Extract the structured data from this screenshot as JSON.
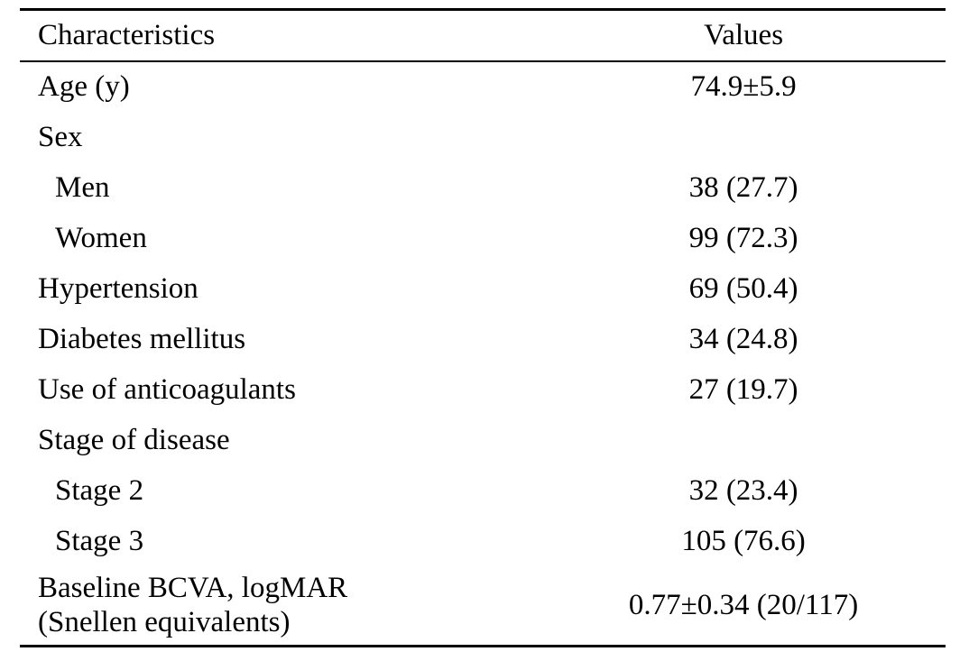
{
  "table": {
    "headers": {
      "characteristics": "Characteristics",
      "values": "Values"
    },
    "rows": [
      {
        "label": "Age (y)",
        "value": "74.9±5.9"
      },
      {
        "label": "Sex",
        "value": ""
      },
      {
        "label": "Men",
        "value": "38 (27.7)"
      },
      {
        "label": "Women",
        "value": "99 (72.3)"
      },
      {
        "label": "Hypertension",
        "value": "69 (50.4)"
      },
      {
        "label": "Diabetes mellitus",
        "value": "34 (24.8)"
      },
      {
        "label": "Use of anticoagulants",
        "value": "27 (19.7)"
      },
      {
        "label": "Stage of disease",
        "value": ""
      },
      {
        "label": "Stage 2",
        "value": "32 (23.4)"
      },
      {
        "label": "Stage 3",
        "value": "105 (76.6)"
      },
      {
        "label_line1": "Baseline BCVA, logMAR",
        "label_line2": "(Snellen equivalents)",
        "value": "0.77±0.34 (20/117)"
      }
    ]
  }
}
